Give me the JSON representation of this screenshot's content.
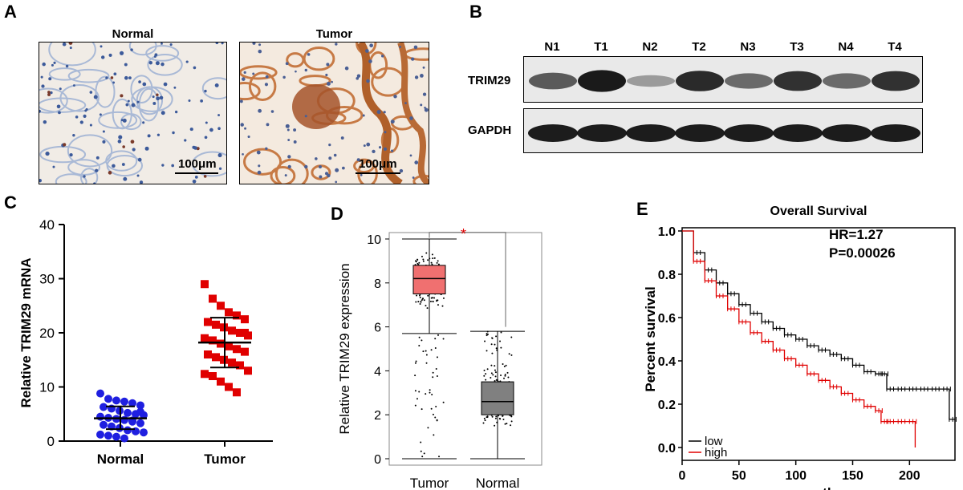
{
  "panels": {
    "A": "A",
    "B": "B",
    "C": "C",
    "D": "D",
    "E": "E"
  },
  "panel_a": {
    "normal_title": "Normal",
    "tumor_title": "Tumor",
    "scale_normal": "100μm",
    "scale_tumor": "100μm"
  },
  "panel_b": {
    "lanes": [
      "N1",
      "T1",
      "N2",
      "T2",
      "N3",
      "T3",
      "N4",
      "T4"
    ],
    "rows": [
      "TRIM29",
      "GAPDH"
    ],
    "trim29_intensity": [
      0.55,
      0.95,
      0.15,
      0.85,
      0.45,
      0.8,
      0.45,
      0.8
    ]
  },
  "colors": {
    "blue": "#1f1fe0",
    "red": "#e00000",
    "box_tumor": "#f07070",
    "box_normal": "#808080",
    "low": "#000000",
    "high": "#e00000"
  },
  "chart_data": [
    {
      "id": "C",
      "type": "scatter",
      "categories": [
        "Normal",
        "Tumor"
      ],
      "ylabel": "Relative TRIM29 mRNA",
      "ylim": [
        0,
        40
      ],
      "yticks": [
        0,
        10,
        20,
        30,
        40
      ],
      "series": [
        {
          "name": "Normal",
          "mean": 4.2,
          "sd_low": 2.2,
          "sd_high": 6.4,
          "values": [
            8.8,
            7.8,
            7.5,
            7.3,
            7.0,
            6.6,
            6.3,
            6.0,
            5.6,
            5.2,
            5.0,
            4.8,
            4.5,
            4.3,
            4.1,
            3.9,
            3.6,
            3.3,
            3.0,
            2.7,
            2.4,
            2.0,
            1.8,
            1.6,
            1.2,
            1.0,
            0.8,
            0.5,
            3.8,
            5.4
          ]
        },
        {
          "name": "Tumor",
          "mean": 18.2,
          "sd_low": 13.6,
          "sd_high": 22.8,
          "values": [
            29.0,
            26.3,
            25.0,
            23.8,
            23.2,
            22.5,
            22.0,
            21.5,
            21.0,
            20.4,
            20.0,
            19.5,
            19.0,
            18.6,
            18.0,
            17.5,
            17.0,
            16.5,
            16.0,
            15.5,
            15.0,
            14.5,
            14.0,
            13.0,
            12.4,
            12.0,
            11.0,
            10.0,
            9.0,
            20.0
          ]
        }
      ]
    },
    {
      "id": "D",
      "type": "box",
      "categories": [
        "Tumor",
        "Normal"
      ],
      "ylabel": "Relative TRIM29 expression",
      "ylim": [
        0,
        10
      ],
      "yticks": [
        0,
        2,
        4,
        6,
        8,
        10
      ],
      "significance": "*",
      "boxes": [
        {
          "name": "Tumor",
          "min": 5.7,
          "q1": 7.5,
          "median": 8.2,
          "q3": 8.8,
          "max": 10.0,
          "low_whisker": 0
        },
        {
          "name": "Normal",
          "min": 0,
          "q1": 2.0,
          "median": 2.6,
          "q3": 3.5,
          "max": 5.8
        }
      ]
    },
    {
      "id": "E",
      "type": "line",
      "title": "Overall Survival",
      "xlabel": "months",
      "ylabel": "Percent survival",
      "xlim": [
        0,
        240
      ],
      "ylim": [
        0,
        1.0
      ],
      "xticks": [
        0,
        50,
        100,
        150,
        200
      ],
      "yticks": [
        0.0,
        0.2,
        0.4,
        0.6,
        0.8,
        1.0
      ],
      "annotations": [
        "HR=1.27",
        "P=0.00026"
      ],
      "legend": "bottom-left",
      "series": [
        {
          "name": "low",
          "x": [
            0,
            10,
            20,
            30,
            40,
            50,
            60,
            70,
            80,
            90,
            100,
            110,
            120,
            130,
            140,
            150,
            160,
            170,
            175,
            180,
            190,
            200,
            210,
            220,
            230,
            235,
            240
          ],
          "y": [
            1.0,
            0.9,
            0.82,
            0.76,
            0.71,
            0.66,
            0.62,
            0.58,
            0.55,
            0.52,
            0.5,
            0.47,
            0.45,
            0.43,
            0.41,
            0.38,
            0.35,
            0.34,
            0.34,
            0.27,
            0.27,
            0.27,
            0.27,
            0.27,
            0.27,
            0.13,
            0.13
          ]
        },
        {
          "name": "high",
          "x": [
            0,
            10,
            20,
            30,
            40,
            50,
            60,
            70,
            80,
            90,
            100,
            110,
            120,
            130,
            140,
            150,
            160,
            170,
            175,
            180,
            190,
            200,
            205
          ],
          "y": [
            1.0,
            0.86,
            0.77,
            0.7,
            0.64,
            0.58,
            0.53,
            0.49,
            0.45,
            0.41,
            0.38,
            0.34,
            0.31,
            0.28,
            0.25,
            0.22,
            0.19,
            0.17,
            0.12,
            0.12,
            0.12,
            0.12,
            0.0
          ]
        }
      ]
    }
  ]
}
